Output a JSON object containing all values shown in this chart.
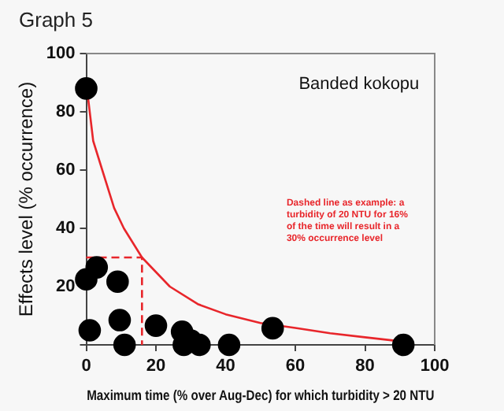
{
  "chart_data": {
    "type": "scatter",
    "title": "Graph 5",
    "xlabel": "Maximum time (% over Aug-Dec) for which turbidity > 20 NTU",
    "ylabel": "Effects level (% occurrence)",
    "annotations": [
      "Banded kokopu",
      "Dashed line as example: a turbidity of 20 NTU for 16% of the time will result in a 30% occurrence level"
    ],
    "xlim": [
      0,
      100
    ],
    "ylim": [
      0,
      100
    ],
    "xticks": [
      0,
      20,
      40,
      60,
      80,
      100
    ],
    "yticks": [
      {
        "value": 0,
        "label": null
      },
      20,
      40,
      60,
      80,
      100
    ],
    "grid": false,
    "legend": false,
    "series": [
      {
        "marker": "circle",
        "color": "#000000",
        "x": [
          0,
          0,
          3,
          9,
          1,
          9.6,
          11,
          20,
          27.5,
          28,
          30,
          32.5,
          41,
          53.5,
          91
        ],
        "values": [
          88,
          22.5,
          26.6,
          21.7,
          5,
          8.5,
          0,
          6.6,
          4.5,
          0,
          1.5,
          0,
          0,
          5.7,
          0
        ]
      },
      {
        "type": "line",
        "marker": "none",
        "line_style": "solid",
        "color": "#e8262b",
        "x": [
          0.5,
          2,
          4.6,
          8,
          10.8,
          16,
          24,
          32,
          40,
          50,
          60,
          70,
          80,
          91
        ],
        "values": [
          85,
          70,
          60,
          47,
          40,
          30,
          20,
          14,
          10.5,
          7.5,
          5.8,
          4,
          2.6,
          1.1
        ]
      },
      {
        "type": "line",
        "marker": "none",
        "line_style": "dashed",
        "color": "#e8262b",
        "x": [
          0,
          16,
          16
        ],
        "values": [
          30,
          30,
          0
        ]
      }
    ]
  }
}
